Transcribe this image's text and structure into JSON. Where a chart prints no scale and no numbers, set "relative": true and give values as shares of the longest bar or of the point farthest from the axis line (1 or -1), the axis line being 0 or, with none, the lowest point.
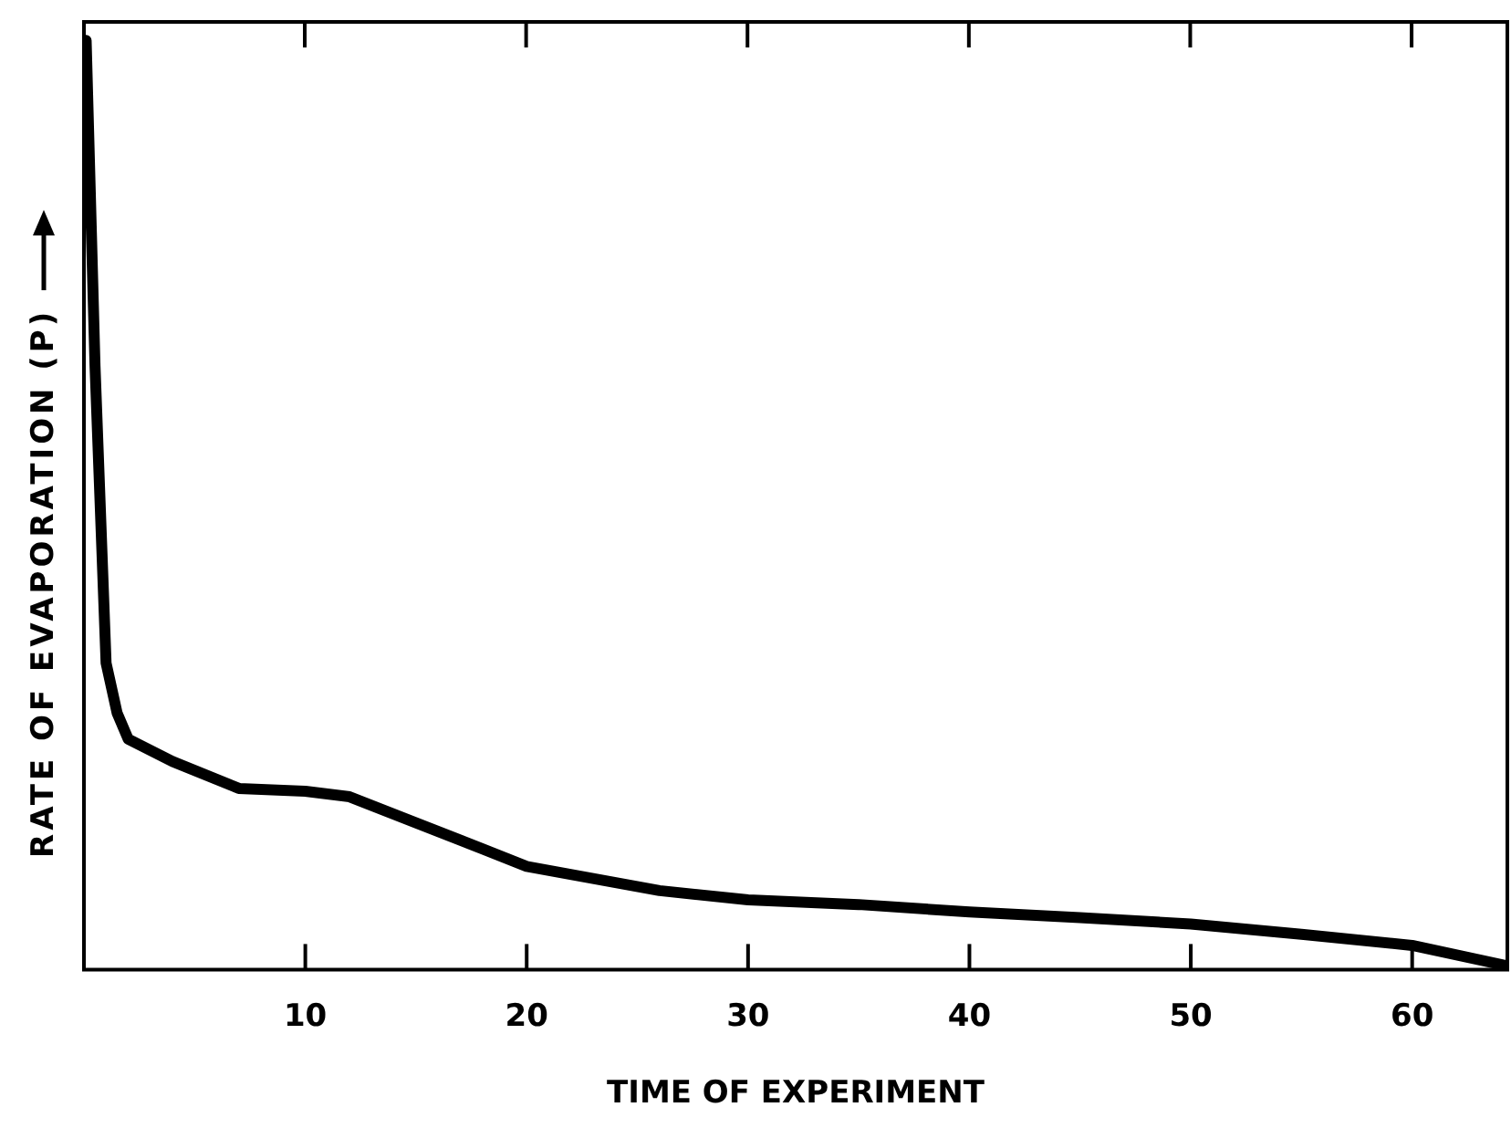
{
  "chart_data": {
    "type": "line",
    "xlabel": "TIME OF EXPERIMENT",
    "ylabel": "RATE OF EVAPORATION (P)",
    "relative": true,
    "xlim": [
      0,
      64.3
    ],
    "xticks": [
      10,
      20,
      30,
      40,
      50,
      60
    ],
    "marker": "none",
    "line_style": "solid",
    "series": [
      {
        "color": "#000000",
        "x": [
          0.1,
          0.5,
          1,
          1.5,
          2,
          4,
          7,
          10,
          12,
          15,
          18,
          20,
          23,
          26,
          30,
          35,
          40,
          45,
          50,
          55,
          60,
          64.3
        ],
        "values": [
          1,
          0.65,
          0.33,
          0.276,
          0.248,
          0.224,
          0.195,
          0.192,
          0.186,
          0.158,
          0.13,
          0.111,
          0.098,
          0.085,
          0.075,
          0.07,
          0.062,
          0.056,
          0.049,
          0.038,
          0.026,
          0.004
        ]
      }
    ]
  }
}
